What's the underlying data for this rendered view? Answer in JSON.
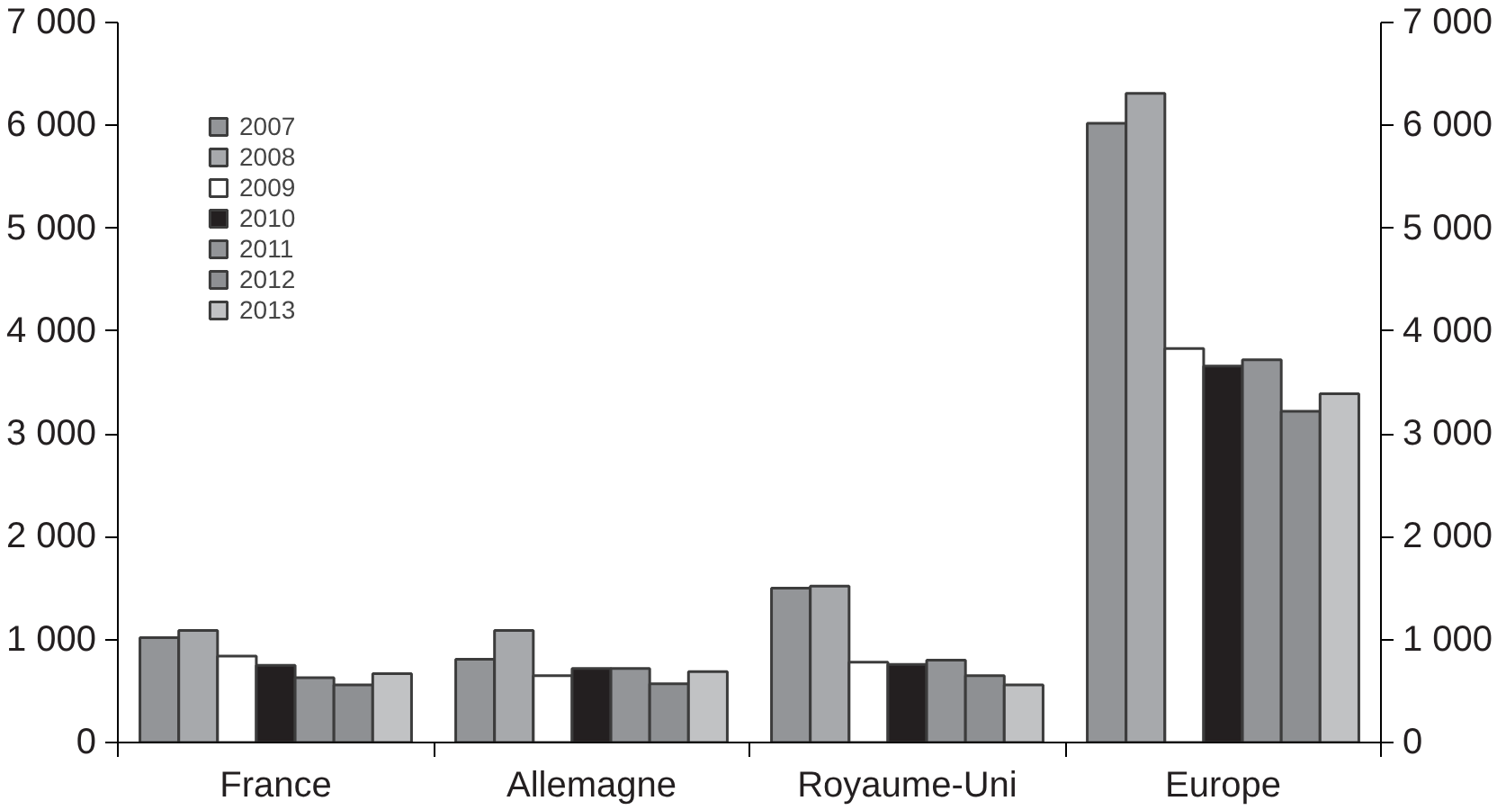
{
  "chart_data": {
    "type": "bar",
    "categories": [
      "France",
      "Allemagne",
      "Royaume-Uni",
      "Europe"
    ],
    "series": [
      {
        "name": "2007",
        "color": "#939598",
        "values": [
          1020,
          810,
          1500,
          6020
        ]
      },
      {
        "name": "2008",
        "color": "#a7a9ac",
        "values": [
          1090,
          1090,
          1520,
          6310
        ]
      },
      {
        "name": "2009",
        "color": "#ffffff",
        "values": [
          840,
          650,
          780,
          3830
        ]
      },
      {
        "name": "2010",
        "color": "#231f20",
        "values": [
          750,
          720,
          760,
          3660
        ]
      },
      {
        "name": "2011",
        "color": "#939598",
        "values": [
          630,
          720,
          800,
          3720
        ]
      },
      {
        "name": "2012",
        "color": "#8e9093",
        "values": [
          560,
          570,
          650,
          3220
        ]
      },
      {
        "name": "2013",
        "color": "#c1c2c4",
        "values": [
          670,
          690,
          560,
          3390
        ]
      }
    ],
    "ylim": [
      0,
      7000
    ],
    "yticks": [
      0,
      {
        "value": 1000,
        "label": "1 000"
      },
      {
        "value": 2000,
        "label": "2 000"
      },
      {
        "value": 3000,
        "label": "3 000"
      },
      {
        "value": 4000,
        "label": "4 000"
      },
      {
        "value": 5000,
        "label": "5 000"
      },
      {
        "value": 6000,
        "label": "6 000"
      },
      {
        "value": 7000,
        "label": "7 000"
      }
    ],
    "y2lim": [
      0,
      7000
    ],
    "y2ticks": [
      0,
      {
        "value": 1000,
        "label": "1 000"
      },
      {
        "value": 2000,
        "label": "2 000"
      },
      {
        "value": 3000,
        "label": "3 000"
      },
      {
        "value": 4000,
        "label": "4 000"
      },
      {
        "value": 5000,
        "label": "5 000"
      },
      {
        "value": 6000,
        "label": "6 000"
      },
      {
        "value": 7000,
        "label": "7 000"
      }
    ],
    "grid": false,
    "legend": "top left"
  }
}
